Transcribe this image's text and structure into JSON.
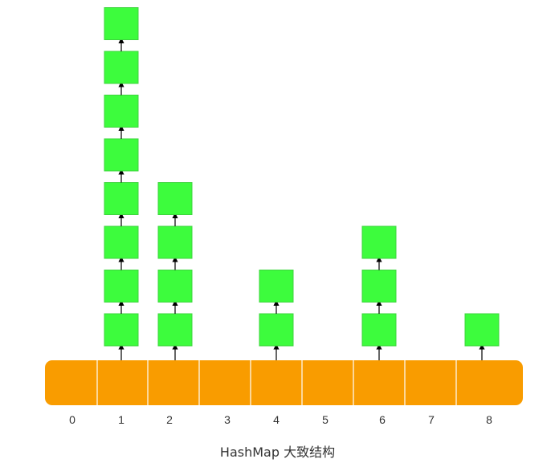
{
  "diagram": {
    "caption": "HashMap 大致结构",
    "colors": {
      "array_fill": "#f99c00",
      "array_divider": "#ffffff",
      "node_fill": "#3dfc3d",
      "node_stroke": "#3dd43d",
      "arrow": "#000000",
      "text": "#333333"
    },
    "buckets": [
      {
        "label": "0",
        "chain_length": 0
      },
      {
        "label": "1",
        "chain_length": 8
      },
      {
        "label": "2",
        "chain_length": 4
      },
      {
        "label": "3",
        "chain_length": 0
      },
      {
        "label": "4",
        "chain_length": 2
      },
      {
        "label": "5",
        "chain_length": 0
      },
      {
        "label": "6",
        "chain_length": 3
      },
      {
        "label": "7",
        "chain_length": 0
      },
      {
        "label": "8",
        "chain_length": 1
      }
    ]
  }
}
